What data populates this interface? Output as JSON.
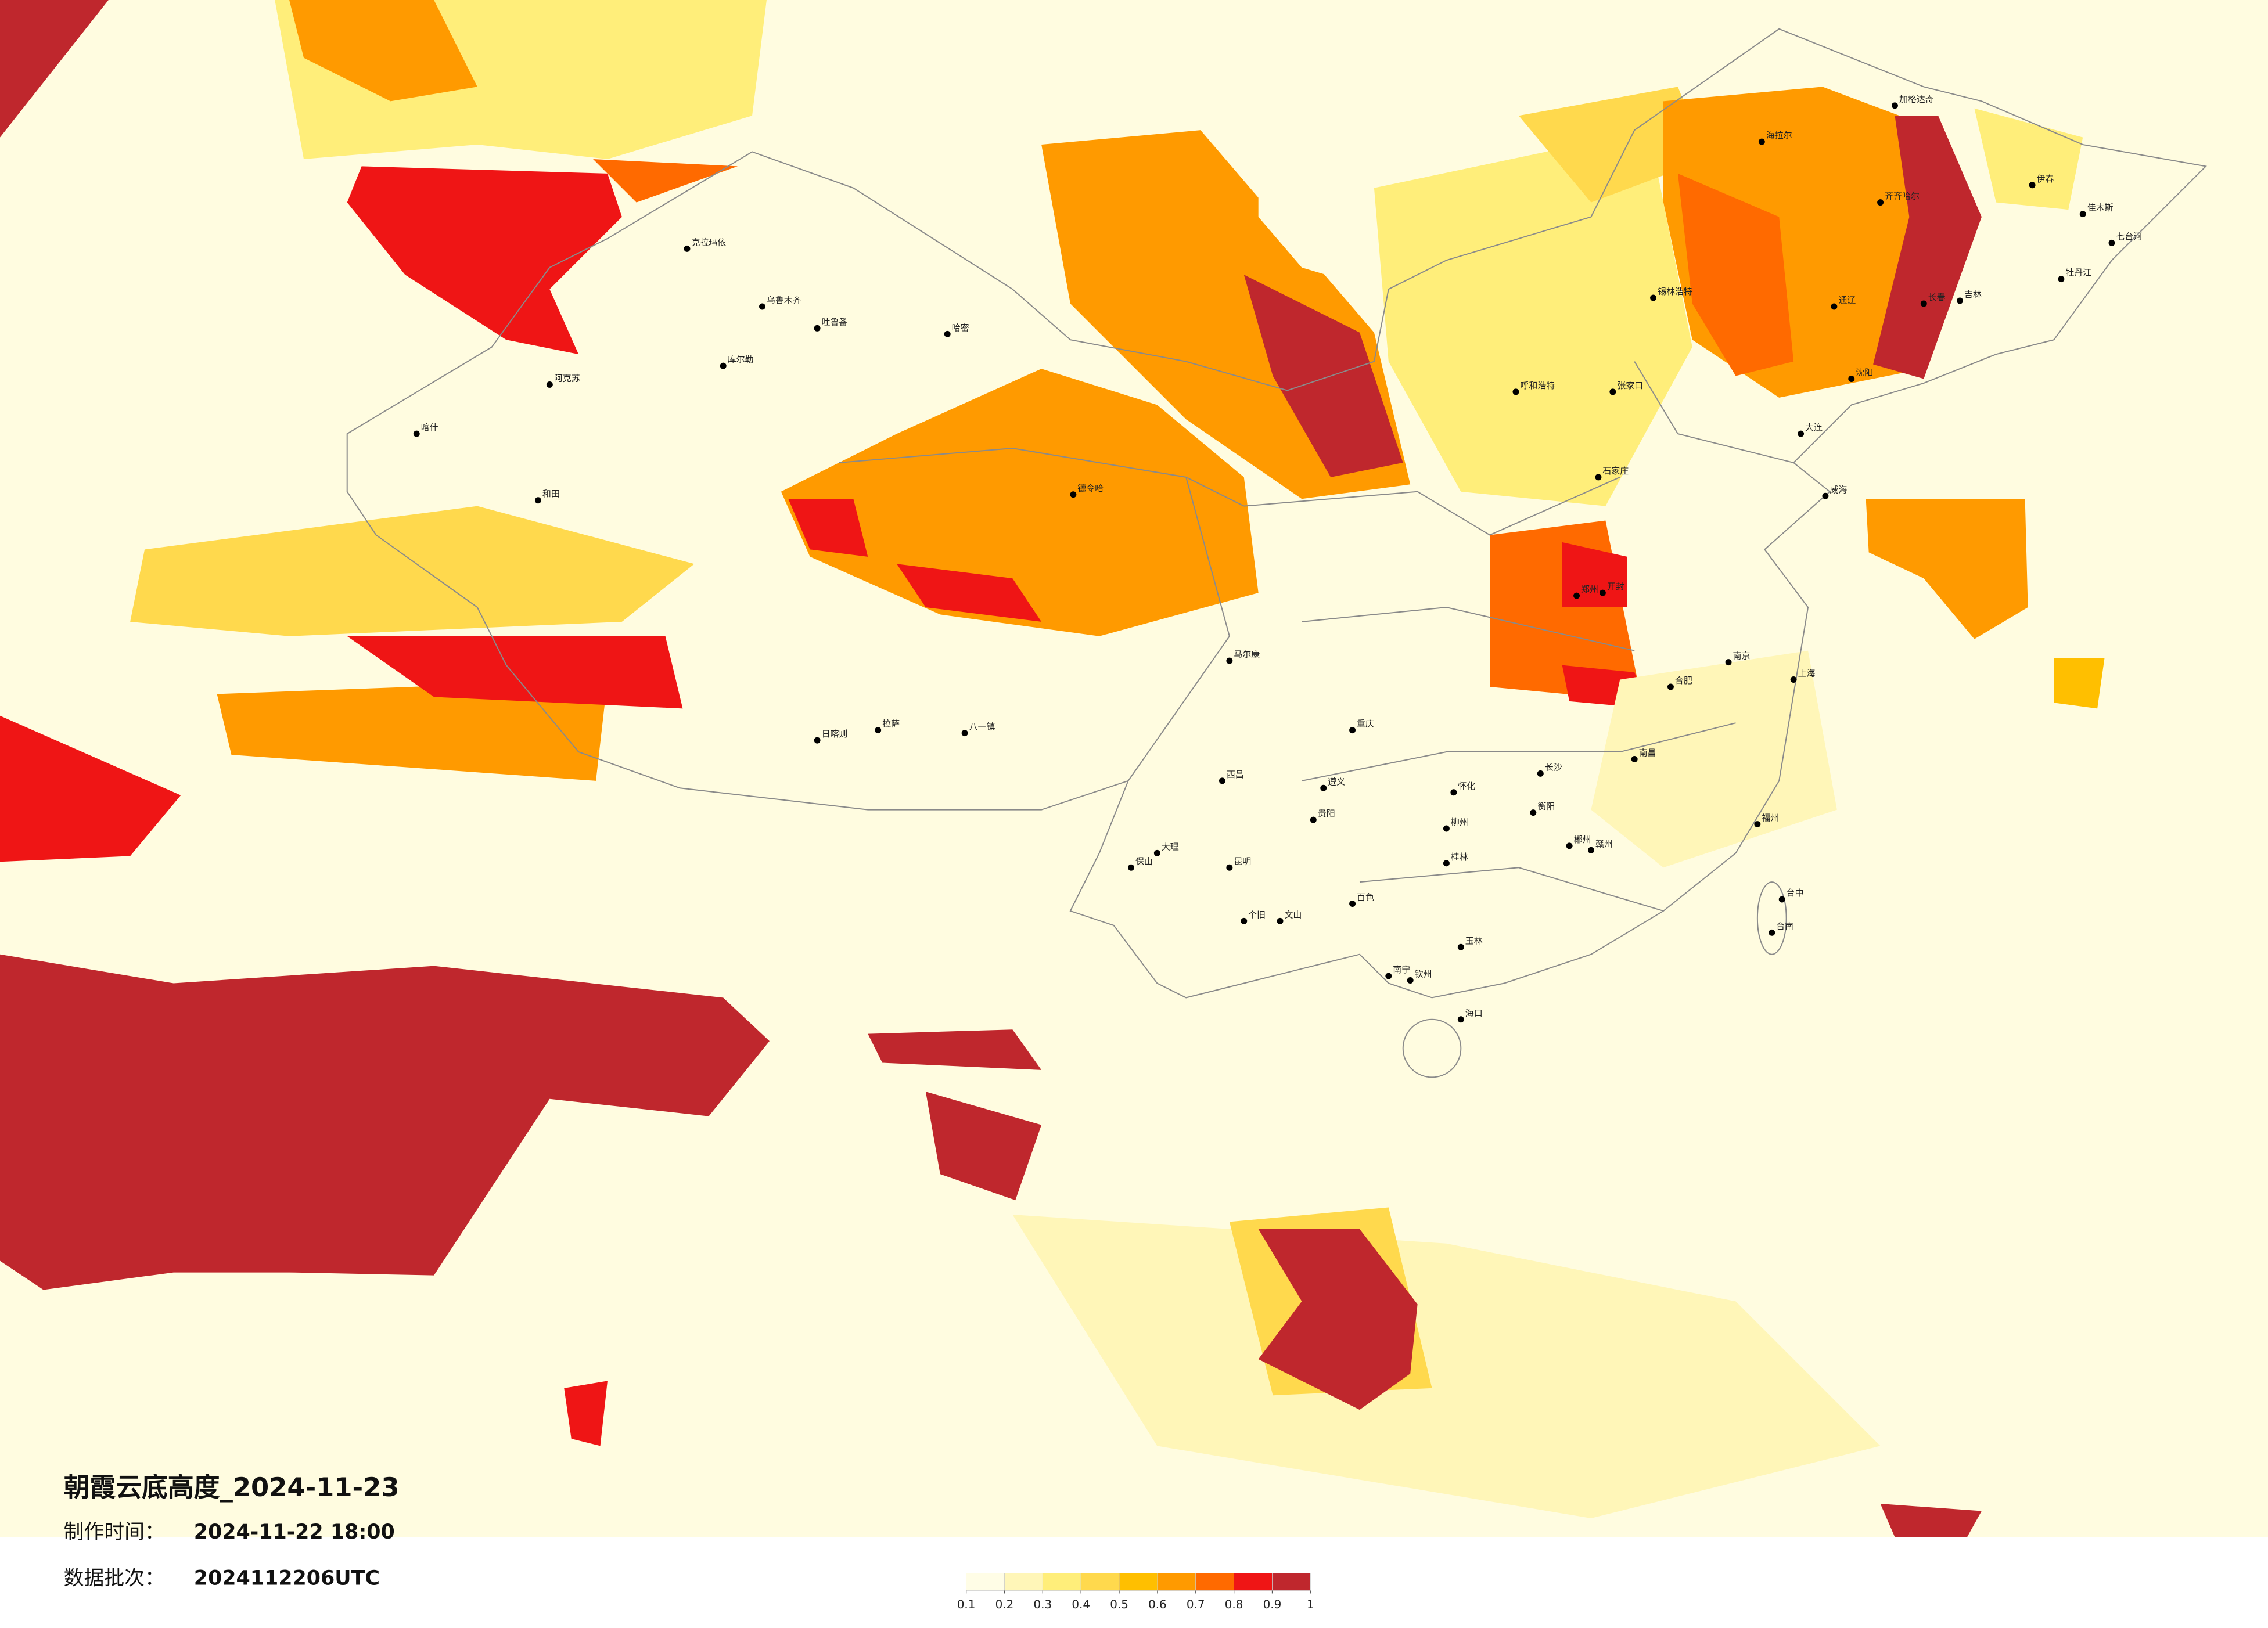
{
  "title": "朝霞云底高度_2024-11-23",
  "info": [
    {
      "label": "制作时间：",
      "value": "2024-11-22 18:00"
    },
    {
      "label": "数据批次：",
      "value": "2024112206UTC"
    }
  ],
  "colorbar": {
    "ticks": [
      0.1,
      0.2,
      0.3,
      0.4,
      0.5,
      0.6,
      0.7,
      0.8,
      0.9,
      1
    ],
    "colors": [
      "#fffde6",
      "#fff6b8",
      "#ffee7a",
      "#ffd94d",
      "#ffbf00",
      "#ff9a00",
      "#ff6a00",
      "#ef1515",
      "#bf272d"
    ]
  },
  "cities": [
    "克拉玛依",
    "乌鲁木齐",
    "吐鲁番",
    "哈密",
    "库尔勒",
    "阿克苏",
    "喀什",
    "和田",
    "德令哈",
    "日喀则",
    "拉萨",
    "八一镇",
    "马尔康",
    "西昌",
    "大理",
    "保山",
    "昆明",
    "个旧",
    "文山",
    "百色",
    "南宁",
    "钦州",
    "玉林",
    "海口",
    "桂林",
    "贵阳",
    "遵义",
    "怀化",
    "长沙",
    "南昌",
    "赣州",
    "衡阳",
    "郴州",
    "福州",
    "台中",
    "台南",
    "南京",
    "合肥",
    "郑州",
    "开封",
    "石家庄",
    "张家口",
    "呼和浩特",
    "锡林浩特",
    "通辽",
    "沈阳",
    "长春",
    "吉林",
    "齐齐哈尔",
    "海拉尔",
    "加格达奇",
    "伊春",
    "佳木斯",
    "七台河",
    "牡丹江",
    "大连",
    "威海",
    "重庆",
    "柳州",
    "上海"
  ]
}
